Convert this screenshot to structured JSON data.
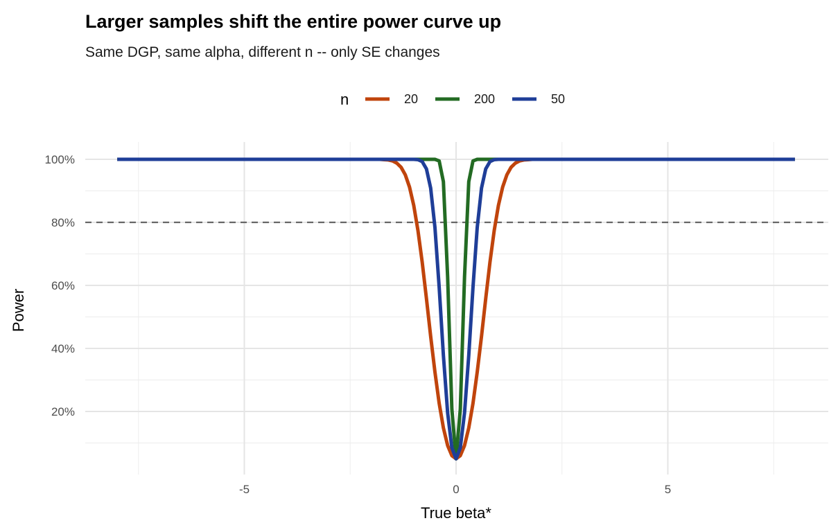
{
  "chart_data": {
    "type": "line",
    "title": "Larger samples shift the entire power curve up",
    "subtitle": "Same DGP, same alpha, different n -- only SE changes",
    "xlabel": "True beta*",
    "ylabel": "Power",
    "xlim": [
      -8.6,
      8.6
    ],
    "ylim": [
      0,
      1.04
    ],
    "x_ticks": [
      {
        "value": -5,
        "label": "-5"
      },
      {
        "value": 0,
        "label": "0"
      },
      {
        "value": 5,
        "label": "5"
      }
    ],
    "y_ticks": [
      {
        "value": 0.2,
        "label": "20%"
      },
      {
        "value": 0.4,
        "label": "40%"
      },
      {
        "value": 0.6,
        "label": "60%"
      },
      {
        "value": 0.8,
        "label": "80%"
      },
      {
        "value": 1.0,
        "label": "100%"
      }
    ],
    "grid": true,
    "reference_line": {
      "y": 0.8,
      "style": "dashed",
      "color": "#666666"
    },
    "legend": {
      "title": "n",
      "placement": "top"
    },
    "x": [
      -8,
      -2.0,
      -1.9,
      -1.8,
      -1.7,
      -1.6,
      -1.5,
      -1.4,
      -1.3,
      -1.2,
      -1.1,
      -1.0,
      -0.9,
      -0.8,
      -0.7,
      -0.6,
      -0.5,
      -0.4,
      -0.3,
      -0.2,
      -0.1,
      0,
      0.1,
      0.2,
      0.3,
      0.4,
      0.5,
      0.6,
      0.7,
      0.8,
      0.9,
      1.0,
      1.1,
      1.2,
      1.3,
      1.4,
      1.5,
      1.6,
      1.7,
      1.8,
      1.9,
      2.0,
      8
    ],
    "series": [
      {
        "name": "20",
        "color": "#c0440c",
        "values": [
          1,
          1,
          1,
          1,
          0.999,
          0.998,
          0.995,
          0.988,
          0.975,
          0.951,
          0.912,
          0.854,
          0.774,
          0.674,
          0.559,
          0.439,
          0.325,
          0.226,
          0.148,
          0.092,
          0.06,
          0.05,
          0.06,
          0.092,
          0.148,
          0.226,
          0.325,
          0.439,
          0.559,
          0.674,
          0.774,
          0.854,
          0.912,
          0.951,
          0.975,
          0.988,
          0.995,
          0.998,
          0.999,
          1,
          1,
          1,
          1
        ]
      },
      {
        "name": "200",
        "color": "#236b23",
        "values": [
          1,
          1,
          1,
          1,
          1,
          1,
          1,
          1,
          1,
          1,
          1,
          1,
          1,
          1,
          1,
          1,
          1,
          0.995,
          0.929,
          0.628,
          0.208,
          0.05,
          0.208,
          0.628,
          0.929,
          0.995,
          1,
          1,
          1,
          1,
          1,
          1,
          1,
          1,
          1,
          1,
          1,
          1,
          1,
          1,
          1,
          1,
          1
        ]
      },
      {
        "name": "50",
        "color": "#1f3e98",
        "values": [
          1,
          1,
          1,
          1,
          1,
          1,
          1,
          1,
          1,
          1,
          1,
          1,
          0.999,
          0.993,
          0.97,
          0.909,
          0.784,
          0.594,
          0.378,
          0.196,
          0.085,
          0.05,
          0.085,
          0.196,
          0.378,
          0.594,
          0.784,
          0.909,
          0.97,
          0.993,
          0.999,
          1,
          1,
          1,
          1,
          1,
          1,
          1,
          1,
          1,
          1,
          1,
          1
        ]
      }
    ]
  }
}
